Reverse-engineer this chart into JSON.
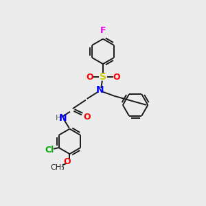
{
  "background_color": "#ececec",
  "bond_color": "#1a1a1a",
  "bond_lw": 1.4,
  "atom_colors": {
    "F": "#ee00ee",
    "S": "#cccc00",
    "N": "#0000ff",
    "O": "#ff0000",
    "Cl": "#00aa00",
    "C": "#1a1a1a",
    "H": "#555555"
  },
  "ring_r": 0.62,
  "figsize": [
    3.0,
    3.0
  ],
  "dpi": 100
}
